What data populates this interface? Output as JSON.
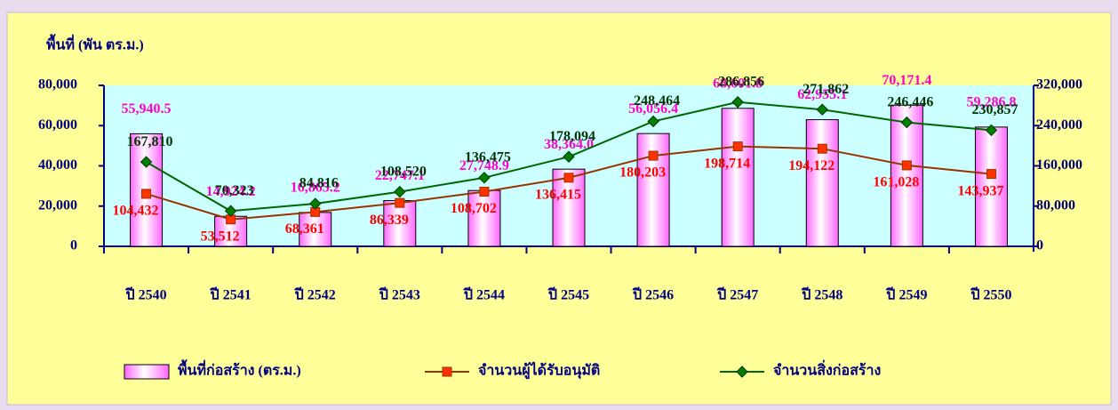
{
  "chart_data": {
    "type": "bar",
    "y_axis_label": "พื้นที่ (พัน ตร.ม.)",
    "categories": [
      "ปี 2540",
      "ปี 2541",
      "ปี 2542",
      "ปี 2543",
      "ปี 2544",
      "ปี 2545",
      "ปี 2546",
      "ปี 2547",
      "ปี 2548",
      "ปี 2549",
      "ปี 2550"
    ],
    "series": [
      {
        "name": "พื้นที่ก่อสร้าง (ตร.ม.)",
        "type": "bar",
        "color": "#ff66ff",
        "label_color": "#ff00cc",
        "values": [
          55940.5,
          14924.2,
          16865.2,
          22747.1,
          27748.9,
          38364.0,
          56056.4,
          68601.8,
          62955.1,
          70171.4,
          59286.8
        ],
        "value_labels": [
          "55,940.5",
          "14,924.2",
          "16,865.2",
          "22,747.1",
          "27,748.9",
          "38,364.0",
          "56,056.4",
          "68,601.8",
          "62,955.1",
          "70,171.4",
          "59,286.8"
        ]
      },
      {
        "name": "จำนวนผู้ได้รับอนุมัติ",
        "type": "line",
        "axis": "y2",
        "color": "#993300",
        "marker_color": "#ff3300",
        "label_color": "#ff0000",
        "values": [
          104432,
          53512,
          68361,
          86339,
          108702,
          136415,
          180203,
          198714,
          194122,
          161028,
          143937
        ],
        "value_labels": [
          "104,432",
          "53,512",
          "68,361",
          "86,339",
          "108,702",
          "136,415",
          "180,203",
          "198,714",
          "194,122",
          "161,028",
          "143,937"
        ]
      },
      {
        "name": "จำนวนสิ่งก่อสร้าง",
        "type": "line",
        "axis": "y2",
        "color": "#006600",
        "marker_color": "#008000",
        "label_color": "#003300",
        "values": [
          167810,
          70323,
          84816,
          108520,
          136475,
          178094,
          248464,
          286856,
          271862,
          246446,
          230857
        ],
        "value_labels": [
          "167,810",
          "70,323",
          "84,816",
          "108,520",
          "136,475",
          "178,094",
          "248,464",
          "286,856",
          "271,862",
          "246,446",
          "230,857"
        ]
      }
    ],
    "ylim": [
      0,
      80000
    ],
    "yticks": [
      0,
      {
        "value": 20000,
        "label": "20,000"
      },
      {
        "value": 40000,
        "label": "40,000"
      },
      {
        "value": 60000,
        "label": "60,000"
      },
      {
        "value": 80000,
        "label": "80,000"
      }
    ],
    "y2lim": [
      0,
      320000
    ],
    "y2ticks": [
      0,
      {
        "value": 80000,
        "label": "80,000"
      },
      {
        "value": 160000,
        "label": "160,000"
      },
      {
        "value": 240000,
        "label": "240,000"
      },
      {
        "value": 320000,
        "label": "320,000"
      }
    ],
    "grid": false
  }
}
